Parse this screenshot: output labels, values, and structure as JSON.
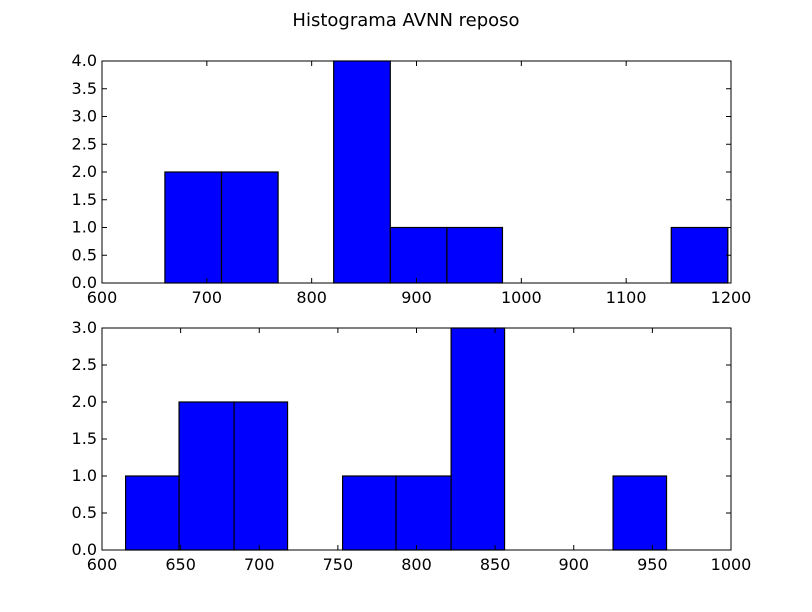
{
  "figure": {
    "title": "Histograma AVNN reposo"
  },
  "chart_data": [
    {
      "type": "bar",
      "title": "",
      "xlabel": "",
      "ylabel": "",
      "xlim": [
        600,
        1200
      ],
      "ylim": [
        0,
        4.0
      ],
      "xticks": [
        "600",
        "700",
        "800",
        "900",
        "1000",
        "1100",
        "1200"
      ],
      "yticks": [
        "0.0",
        "0.5",
        "1.0",
        "1.5",
        "2.0",
        "2.5",
        "3.0",
        "3.5",
        "4.0"
      ],
      "bin_edges": [
        660,
        714,
        768,
        821,
        875,
        929,
        982,
        1036,
        1090,
        1143,
        1197
      ],
      "values": [
        2,
        2,
        0,
        4,
        1,
        1,
        0,
        0,
        0,
        1
      ],
      "bar_color": "#0000ff",
      "grid": false
    },
    {
      "type": "bar",
      "title": "",
      "xlabel": "",
      "ylabel": "",
      "xlim": [
        600,
        1000
      ],
      "ylim": [
        0,
        3.0
      ],
      "xticks": [
        "600",
        "650",
        "700",
        "750",
        "800",
        "850",
        "900",
        "950",
        "1000"
      ],
      "yticks": [
        "0.0",
        "0.5",
        "1.0",
        "1.5",
        "2.0",
        "2.5",
        "3.0"
      ],
      "bin_edges": [
        615,
        649,
        684,
        718,
        753,
        787,
        822,
        856,
        890,
        925,
        959
      ],
      "values": [
        1,
        2,
        2,
        0,
        1,
        1,
        3,
        0,
        0,
        1
      ],
      "bar_color": "#0000ff",
      "grid": false
    }
  ]
}
